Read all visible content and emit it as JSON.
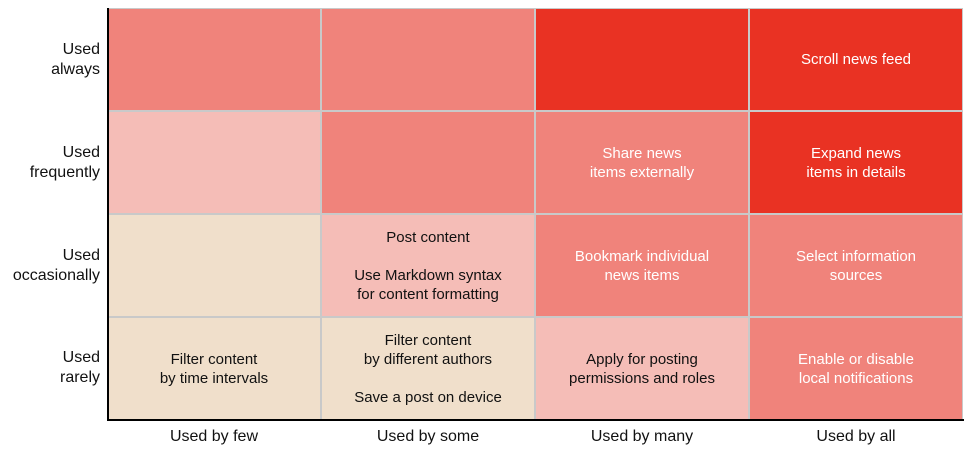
{
  "rows": [
    "Used\nalways",
    "Used\nfrequently",
    "Used\noccasionally",
    "Used\nrarely"
  ],
  "columns": [
    "Used by few",
    "Used by some",
    "Used by many",
    "Used by all"
  ],
  "cells": [
    [
      {
        "text": "",
        "color": "#f0837b",
        "text_color": "#ffffff"
      },
      {
        "text": "",
        "color": "#f0837b",
        "text_color": "#ffffff"
      },
      {
        "text": "",
        "color": "#e93223",
        "text_color": "#ffffff"
      },
      {
        "text": "Scroll news feed",
        "color": "#e93223",
        "text_color": "#ffffff"
      }
    ],
    [
      {
        "text": "",
        "color": "#f5bdb7",
        "text_color": "#ffffff"
      },
      {
        "text": "",
        "color": "#f0837b",
        "text_color": "#ffffff"
      },
      {
        "text": "Share news\nitems externally",
        "color": "#f0837b",
        "text_color": "#ffffff"
      },
      {
        "text": "Expand news\nitems in details",
        "color": "#e93223",
        "text_color": "#ffffff"
      }
    ],
    [
      {
        "text": "",
        "color": "#f0dfcb",
        "text_color": "#111111"
      },
      {
        "text": "Post content\n\nUse Markdown syntax\nfor content formatting",
        "color": "#f5bdb7",
        "text_color": "#111111"
      },
      {
        "text": "Bookmark individual\nnews items",
        "color": "#f0837b",
        "text_color": "#ffffff"
      },
      {
        "text": "Select information\nsources",
        "color": "#f0837b",
        "text_color": "#ffffff"
      }
    ],
    [
      {
        "text": "Filter content\nby time intervals",
        "color": "#f0dfcb",
        "text_color": "#111111"
      },
      {
        "text": "Filter content\nby different authors\n\nSave a post on device",
        "color": "#f0dfcb",
        "text_color": "#111111"
      },
      {
        "text": "Apply for posting\npermissions and roles",
        "color": "#f5bdb7",
        "text_color": "#111111"
      },
      {
        "text": "Enable or disable\nlocal notifications",
        "color": "#f0837b",
        "text_color": "#ffffff"
      }
    ]
  ]
}
